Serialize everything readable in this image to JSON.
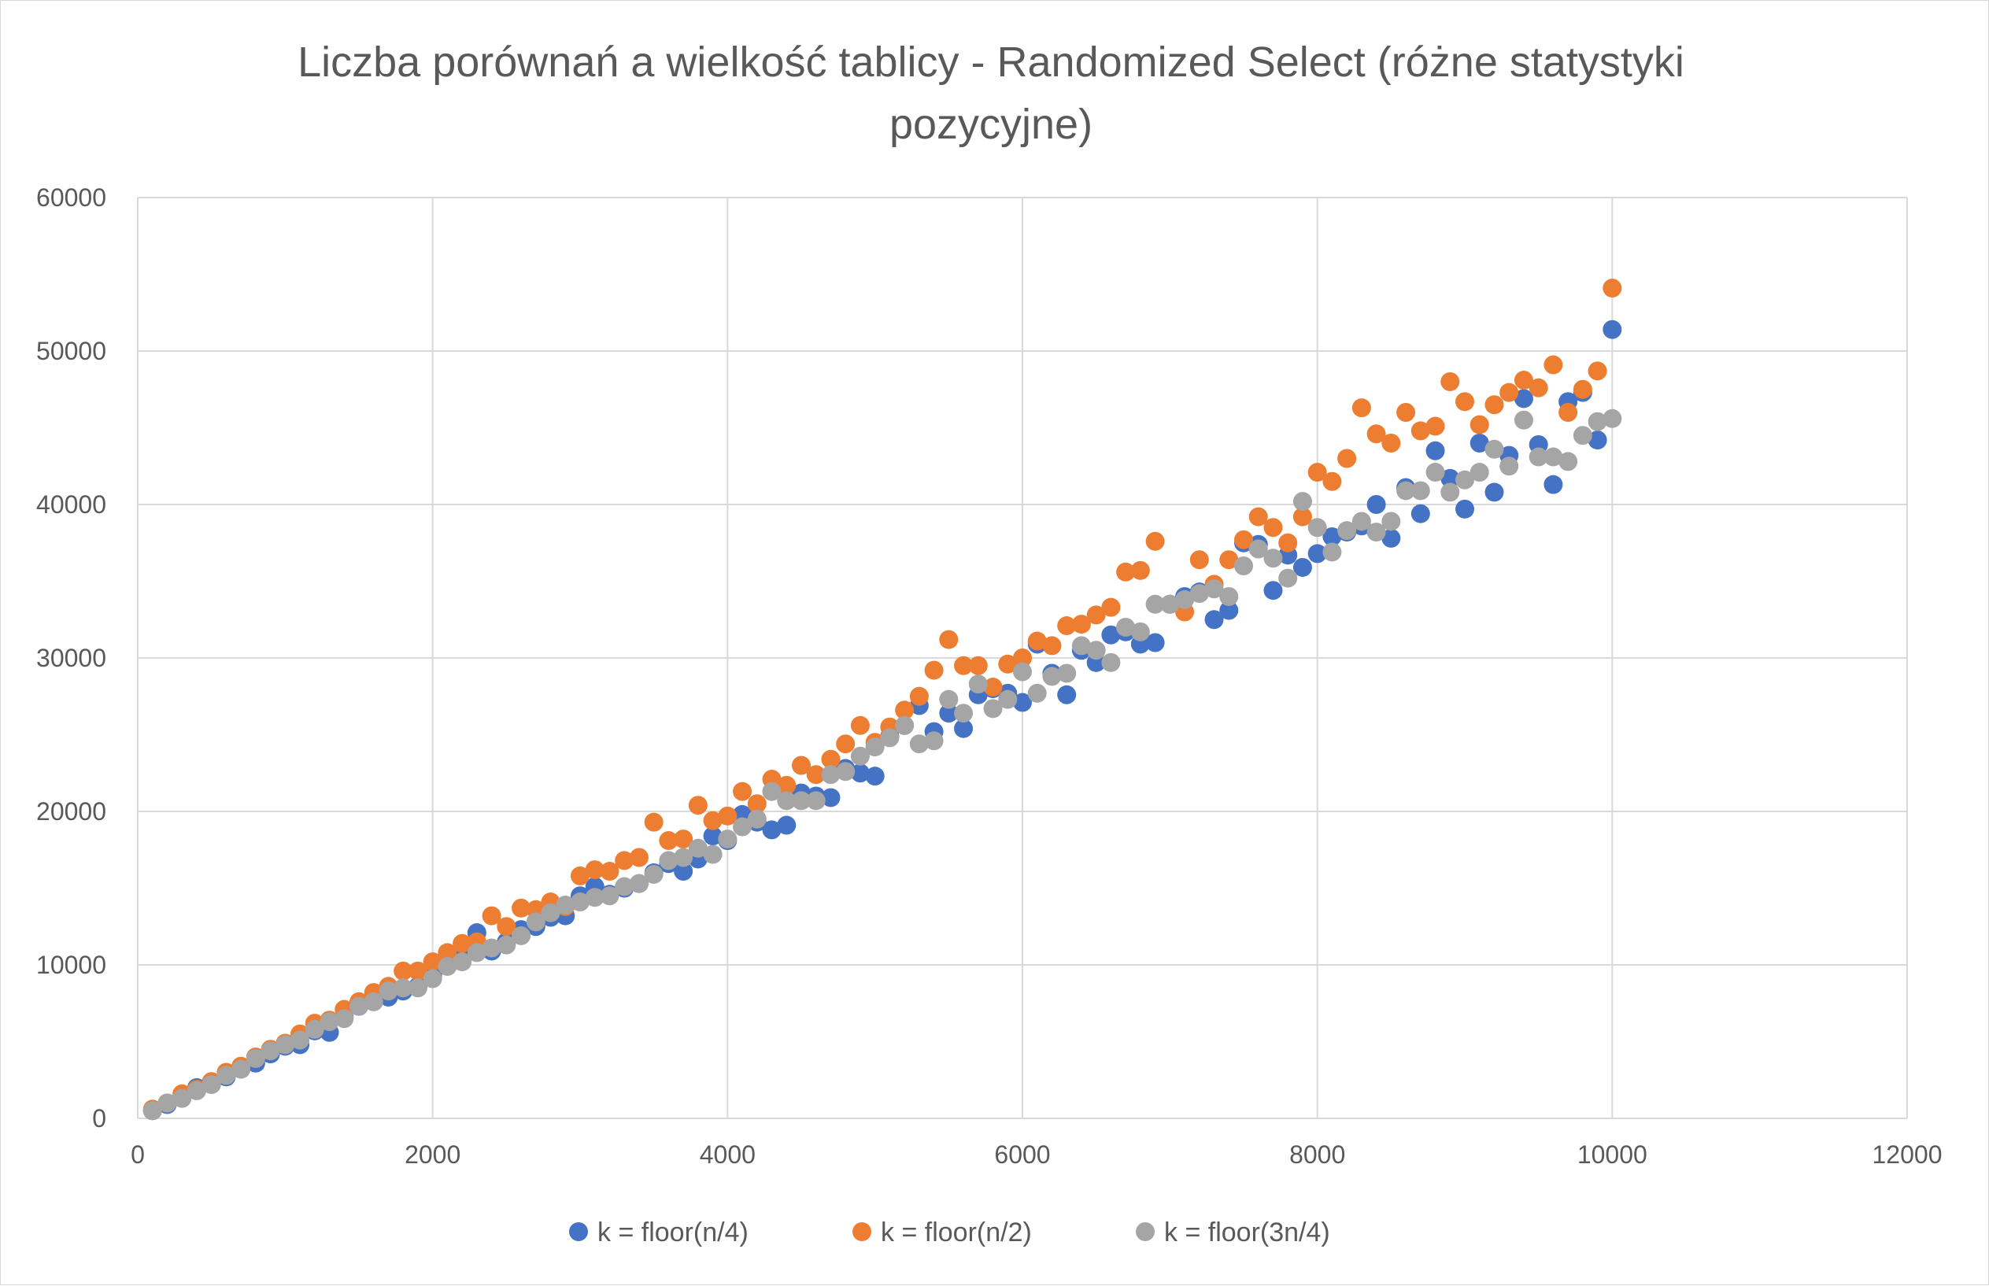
{
  "chart_data": {
    "type": "scatter",
    "title": "Liczba porównań a wielkość tablicy - Randomized Select (różne statystyki pozycyjne)",
    "title_lines": [
      "Liczba porównań a wielkość tablicy - Randomized Select (różne statystyki",
      "pozycyjne)"
    ],
    "xlabel": "",
    "ylabel": "",
    "xlim": [
      0,
      12000
    ],
    "ylim": [
      0,
      60000
    ],
    "x_ticks": [
      0,
      2000,
      4000,
      6000,
      8000,
      10000,
      12000
    ],
    "y_ticks": [
      0,
      10000,
      20000,
      30000,
      40000,
      50000,
      60000
    ],
    "x_tick_labels": [
      "0",
      "2000",
      "4000",
      "6000",
      "8000",
      "10000",
      "12000"
    ],
    "y_tick_labels": [
      "0",
      "10000",
      "20000",
      "30000",
      "40000",
      "50000",
      "60000"
    ],
    "grid": true,
    "legend_position": "bottom",
    "series": [
      {
        "name": "k = floor(n/4)",
        "color": "#4472c4",
        "points": [
          [
            100,
            500
          ],
          [
            200,
            900
          ],
          [
            300,
            1400
          ],
          [
            400,
            2000
          ],
          [
            500,
            2300
          ],
          [
            600,
            2700
          ],
          [
            700,
            3300
          ],
          [
            800,
            3600
          ],
          [
            900,
            4200
          ],
          [
            1000,
            4700
          ],
          [
            1100,
            4800
          ],
          [
            1200,
            5700
          ],
          [
            1300,
            5600
          ],
          [
            1400,
            6600
          ],
          [
            1500,
            7300
          ],
          [
            1600,
            7600
          ],
          [
            1700,
            7900
          ],
          [
            1800,
            8300
          ],
          [
            1900,
            8600
          ],
          [
            2000,
            9300
          ],
          [
            2100,
            10300
          ],
          [
            2200,
            10500
          ],
          [
            2300,
            12100
          ],
          [
            2400,
            10900
          ],
          [
            2500,
            11500
          ],
          [
            2600,
            12300
          ],
          [
            2700,
            12500
          ],
          [
            2800,
            13100
          ],
          [
            2900,
            13200
          ],
          [
            3000,
            14500
          ],
          [
            3100,
            15100
          ],
          [
            3200,
            14600
          ],
          [
            3300,
            15000
          ],
          [
            3400,
            15300
          ],
          [
            3500,
            16000
          ],
          [
            3600,
            16600
          ],
          [
            3700,
            16100
          ],
          [
            3800,
            16900
          ],
          [
            3900,
            18400
          ],
          [
            4000,
            18100
          ],
          [
            4100,
            19800
          ],
          [
            4200,
            19300
          ],
          [
            4300,
            18800
          ],
          [
            4400,
            19100
          ],
          [
            4500,
            21200
          ],
          [
            4600,
            21000
          ],
          [
            4700,
            20900
          ],
          [
            4800,
            22800
          ],
          [
            4900,
            22500
          ],
          [
            5000,
            22300
          ],
          [
            5100,
            24900
          ],
          [
            5200,
            25600
          ],
          [
            5300,
            26900
          ],
          [
            5400,
            25200
          ],
          [
            5500,
            26400
          ],
          [
            5600,
            25400
          ],
          [
            5700,
            27600
          ],
          [
            5800,
            28000
          ],
          [
            5900,
            27700
          ],
          [
            6000,
            27100
          ],
          [
            6100,
            30900
          ],
          [
            6200,
            29000
          ],
          [
            6300,
            27600
          ],
          [
            6400,
            30500
          ],
          [
            6500,
            29700
          ],
          [
            6600,
            31500
          ],
          [
            6700,
            31700
          ],
          [
            6800,
            30900
          ],
          [
            6900,
            31000
          ],
          [
            7000,
            33500
          ],
          [
            7100,
            34000
          ],
          [
            7200,
            34300
          ],
          [
            7300,
            32500
          ],
          [
            7400,
            33100
          ],
          [
            7500,
            37500
          ],
          [
            7600,
            37400
          ],
          [
            7700,
            34400
          ],
          [
            7800,
            36700
          ],
          [
            7900,
            35900
          ],
          [
            8000,
            36800
          ],
          [
            8100,
            37900
          ],
          [
            8200,
            38200
          ],
          [
            8300,
            38600
          ],
          [
            8400,
            40000
          ],
          [
            8500,
            37800
          ],
          [
            8600,
            41100
          ],
          [
            8700,
            39400
          ],
          [
            8800,
            43500
          ],
          [
            8900,
            41700
          ],
          [
            9000,
            39700
          ],
          [
            9100,
            44000
          ],
          [
            9200,
            40800
          ],
          [
            9300,
            43200
          ],
          [
            9400,
            46900
          ],
          [
            9500,
            43900
          ],
          [
            9600,
            41300
          ],
          [
            9700,
            46700
          ],
          [
            9800,
            47300
          ],
          [
            9900,
            44200
          ],
          [
            10000,
            51400
          ]
        ]
      },
      {
        "name": "k = floor(n/2)",
        "color": "#ed7d31",
        "points": [
          [
            100,
            600
          ],
          [
            200,
            1000
          ],
          [
            300,
            1600
          ],
          [
            400,
            1900
          ],
          [
            500,
            2400
          ],
          [
            600,
            3000
          ],
          [
            700,
            3400
          ],
          [
            800,
            4000
          ],
          [
            900,
            4500
          ],
          [
            1000,
            4900
          ],
          [
            1100,
            5500
          ],
          [
            1200,
            6200
          ],
          [
            1300,
            6400
          ],
          [
            1400,
            7100
          ],
          [
            1500,
            7600
          ],
          [
            1600,
            8200
          ],
          [
            1700,
            8600
          ],
          [
            1800,
            9600
          ],
          [
            1900,
            9600
          ],
          [
            2000,
            10200
          ],
          [
            2100,
            10800
          ],
          [
            2200,
            11400
          ],
          [
            2300,
            11500
          ],
          [
            2400,
            13200
          ],
          [
            2500,
            12500
          ],
          [
            2600,
            13700
          ],
          [
            2700,
            13600
          ],
          [
            2800,
            14100
          ],
          [
            2900,
            13800
          ],
          [
            3000,
            15800
          ],
          [
            3100,
            16200
          ],
          [
            3200,
            16100
          ],
          [
            3300,
            16800
          ],
          [
            3400,
            17000
          ],
          [
            3500,
            19300
          ],
          [
            3600,
            18100
          ],
          [
            3700,
            18200
          ],
          [
            3800,
            20400
          ],
          [
            3900,
            19400
          ],
          [
            4000,
            19700
          ],
          [
            4100,
            21300
          ],
          [
            4200,
            20500
          ],
          [
            4300,
            22100
          ],
          [
            4400,
            21700
          ],
          [
            4500,
            23000
          ],
          [
            4600,
            22400
          ],
          [
            4700,
            23400
          ],
          [
            4800,
            24400
          ],
          [
            4900,
            25600
          ],
          [
            5000,
            24500
          ],
          [
            5100,
            25500
          ],
          [
            5200,
            26600
          ],
          [
            5300,
            27500
          ],
          [
            5400,
            29200
          ],
          [
            5500,
            31200
          ],
          [
            5600,
            29500
          ],
          [
            5700,
            29500
          ],
          [
            5800,
            28100
          ],
          [
            5900,
            29600
          ],
          [
            6000,
            30000
          ],
          [
            6100,
            31100
          ],
          [
            6200,
            30800
          ],
          [
            6300,
            32100
          ],
          [
            6400,
            32200
          ],
          [
            6500,
            32800
          ],
          [
            6600,
            33300
          ],
          [
            6700,
            35600
          ],
          [
            6800,
            35700
          ],
          [
            6900,
            37600
          ],
          [
            7000,
            33500
          ],
          [
            7100,
            33000
          ],
          [
            7200,
            36400
          ],
          [
            7300,
            34800
          ],
          [
            7400,
            36400
          ],
          [
            7500,
            37700
          ],
          [
            7600,
            39200
          ],
          [
            7700,
            38500
          ],
          [
            7800,
            37500
          ],
          [
            7900,
            39200
          ],
          [
            8000,
            42100
          ],
          [
            8100,
            41500
          ],
          [
            8200,
            43000
          ],
          [
            8300,
            46300
          ],
          [
            8400,
            44600
          ],
          [
            8500,
            44000
          ],
          [
            8600,
            46000
          ],
          [
            8700,
            44800
          ],
          [
            8800,
            45100
          ],
          [
            8900,
            48000
          ],
          [
            9000,
            46700
          ],
          [
            9100,
            45200
          ],
          [
            9200,
            46500
          ],
          [
            9300,
            47300
          ],
          [
            9400,
            48100
          ],
          [
            9500,
            47600
          ],
          [
            9600,
            49100
          ],
          [
            9700,
            46000
          ],
          [
            9800,
            47500
          ],
          [
            9900,
            48700
          ],
          [
            10000,
            54100
          ]
        ]
      },
      {
        "name": "k = floor(3n/4)",
        "color": "#a5a5a5",
        "points": [
          [
            100,
            500
          ],
          [
            200,
            1000
          ],
          [
            300,
            1300
          ],
          [
            400,
            1800
          ],
          [
            500,
            2200
          ],
          [
            600,
            2800
          ],
          [
            700,
            3200
          ],
          [
            800,
            3900
          ],
          [
            900,
            4400
          ],
          [
            1000,
            4800
          ],
          [
            1100,
            5100
          ],
          [
            1200,
            5800
          ],
          [
            1300,
            6300
          ],
          [
            1400,
            6500
          ],
          [
            1500,
            7300
          ],
          [
            1600,
            7600
          ],
          [
            1700,
            8300
          ],
          [
            1800,
            8500
          ],
          [
            1900,
            8500
          ],
          [
            2000,
            9100
          ],
          [
            2100,
            9900
          ],
          [
            2200,
            10200
          ],
          [
            2300,
            10800
          ],
          [
            2400,
            11100
          ],
          [
            2500,
            11300
          ],
          [
            2600,
            11900
          ],
          [
            2700,
            12800
          ],
          [
            2800,
            13400
          ],
          [
            2900,
            13900
          ],
          [
            3000,
            14100
          ],
          [
            3100,
            14400
          ],
          [
            3200,
            14500
          ],
          [
            3300,
            15100
          ],
          [
            3400,
            15300
          ],
          [
            3500,
            15900
          ],
          [
            3600,
            16800
          ],
          [
            3700,
            17000
          ],
          [
            3800,
            17600
          ],
          [
            3900,
            17200
          ],
          [
            4000,
            18200
          ],
          [
            4100,
            19000
          ],
          [
            4200,
            19500
          ],
          [
            4300,
            21300
          ],
          [
            4400,
            20700
          ],
          [
            4500,
            20700
          ],
          [
            4600,
            20700
          ],
          [
            4700,
            22400
          ],
          [
            4800,
            22600
          ],
          [
            4900,
            23600
          ],
          [
            5000,
            24200
          ],
          [
            5100,
            24800
          ],
          [
            5200,
            25600
          ],
          [
            5300,
            24400
          ],
          [
            5400,
            24600
          ],
          [
            5500,
            27300
          ],
          [
            5600,
            26400
          ],
          [
            5700,
            28300
          ],
          [
            5800,
            26700
          ],
          [
            5900,
            27300
          ],
          [
            6000,
            29100
          ],
          [
            6100,
            27700
          ],
          [
            6200,
            28800
          ],
          [
            6300,
            29000
          ],
          [
            6400,
            30800
          ],
          [
            6500,
            30500
          ],
          [
            6600,
            29700
          ],
          [
            6700,
            32000
          ],
          [
            6800,
            31700
          ],
          [
            6900,
            33500
          ],
          [
            7000,
            33500
          ],
          [
            7100,
            33800
          ],
          [
            7200,
            34200
          ],
          [
            7300,
            34500
          ],
          [
            7400,
            34000
          ],
          [
            7500,
            36000
          ],
          [
            7600,
            37100
          ],
          [
            7700,
            36500
          ],
          [
            7800,
            35200
          ],
          [
            7900,
            40200
          ],
          [
            8000,
            38500
          ],
          [
            8100,
            36900
          ],
          [
            8200,
            38300
          ],
          [
            8300,
            38900
          ],
          [
            8400,
            38200
          ],
          [
            8500,
            38900
          ],
          [
            8600,
            40900
          ],
          [
            8700,
            40900
          ],
          [
            8800,
            42100
          ],
          [
            8900,
            40800
          ],
          [
            9000,
            41600
          ],
          [
            9100,
            42100
          ],
          [
            9200,
            43600
          ],
          [
            9300,
            42500
          ],
          [
            9400,
            45500
          ],
          [
            9500,
            43100
          ],
          [
            9600,
            43100
          ],
          [
            9700,
            42800
          ],
          [
            9800,
            44500
          ],
          [
            9900,
            45400
          ],
          [
            10000,
            45600
          ]
        ]
      }
    ]
  }
}
